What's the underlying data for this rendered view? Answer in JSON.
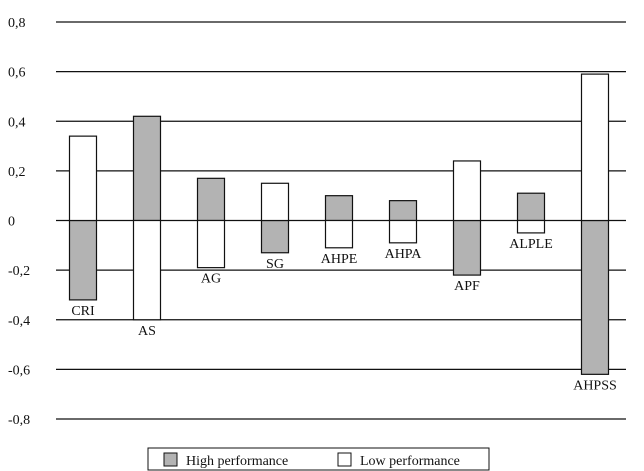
{
  "chart_data": {
    "type": "bar",
    "title": "",
    "xlabel": "",
    "ylabel": "",
    "ylim": [
      -0.8,
      0.8
    ],
    "yticks": [
      0.8,
      0.6,
      0.4,
      0.2,
      0,
      -0.2,
      -0.4,
      -0.6,
      -0.8
    ],
    "ytick_labels": [
      "0,8",
      "0,6",
      "0,4",
      "0,2",
      "0",
      "-0,2",
      "-0,4",
      "-0,6",
      "-0,8"
    ],
    "grid": true,
    "legend_position": "bottom-center",
    "categories": [
      "CRI",
      "AS",
      "AG",
      "SG",
      "AHPE",
      "AHPA",
      "APF",
      "ALPLE",
      "AHPSS"
    ],
    "series": [
      {
        "name": "High performance",
        "color": "#b3b3b3",
        "values": [
          -0.32,
          0.42,
          0.17,
          -0.13,
          0.1,
          0.08,
          -0.22,
          0.11,
          -0.62
        ]
      },
      {
        "name": "Low performance",
        "color": "#ffffff",
        "values": [
          0.34,
          -0.4,
          -0.19,
          0.15,
          -0.11,
          -0.09,
          0.24,
          -0.05,
          0.59
        ]
      }
    ]
  }
}
